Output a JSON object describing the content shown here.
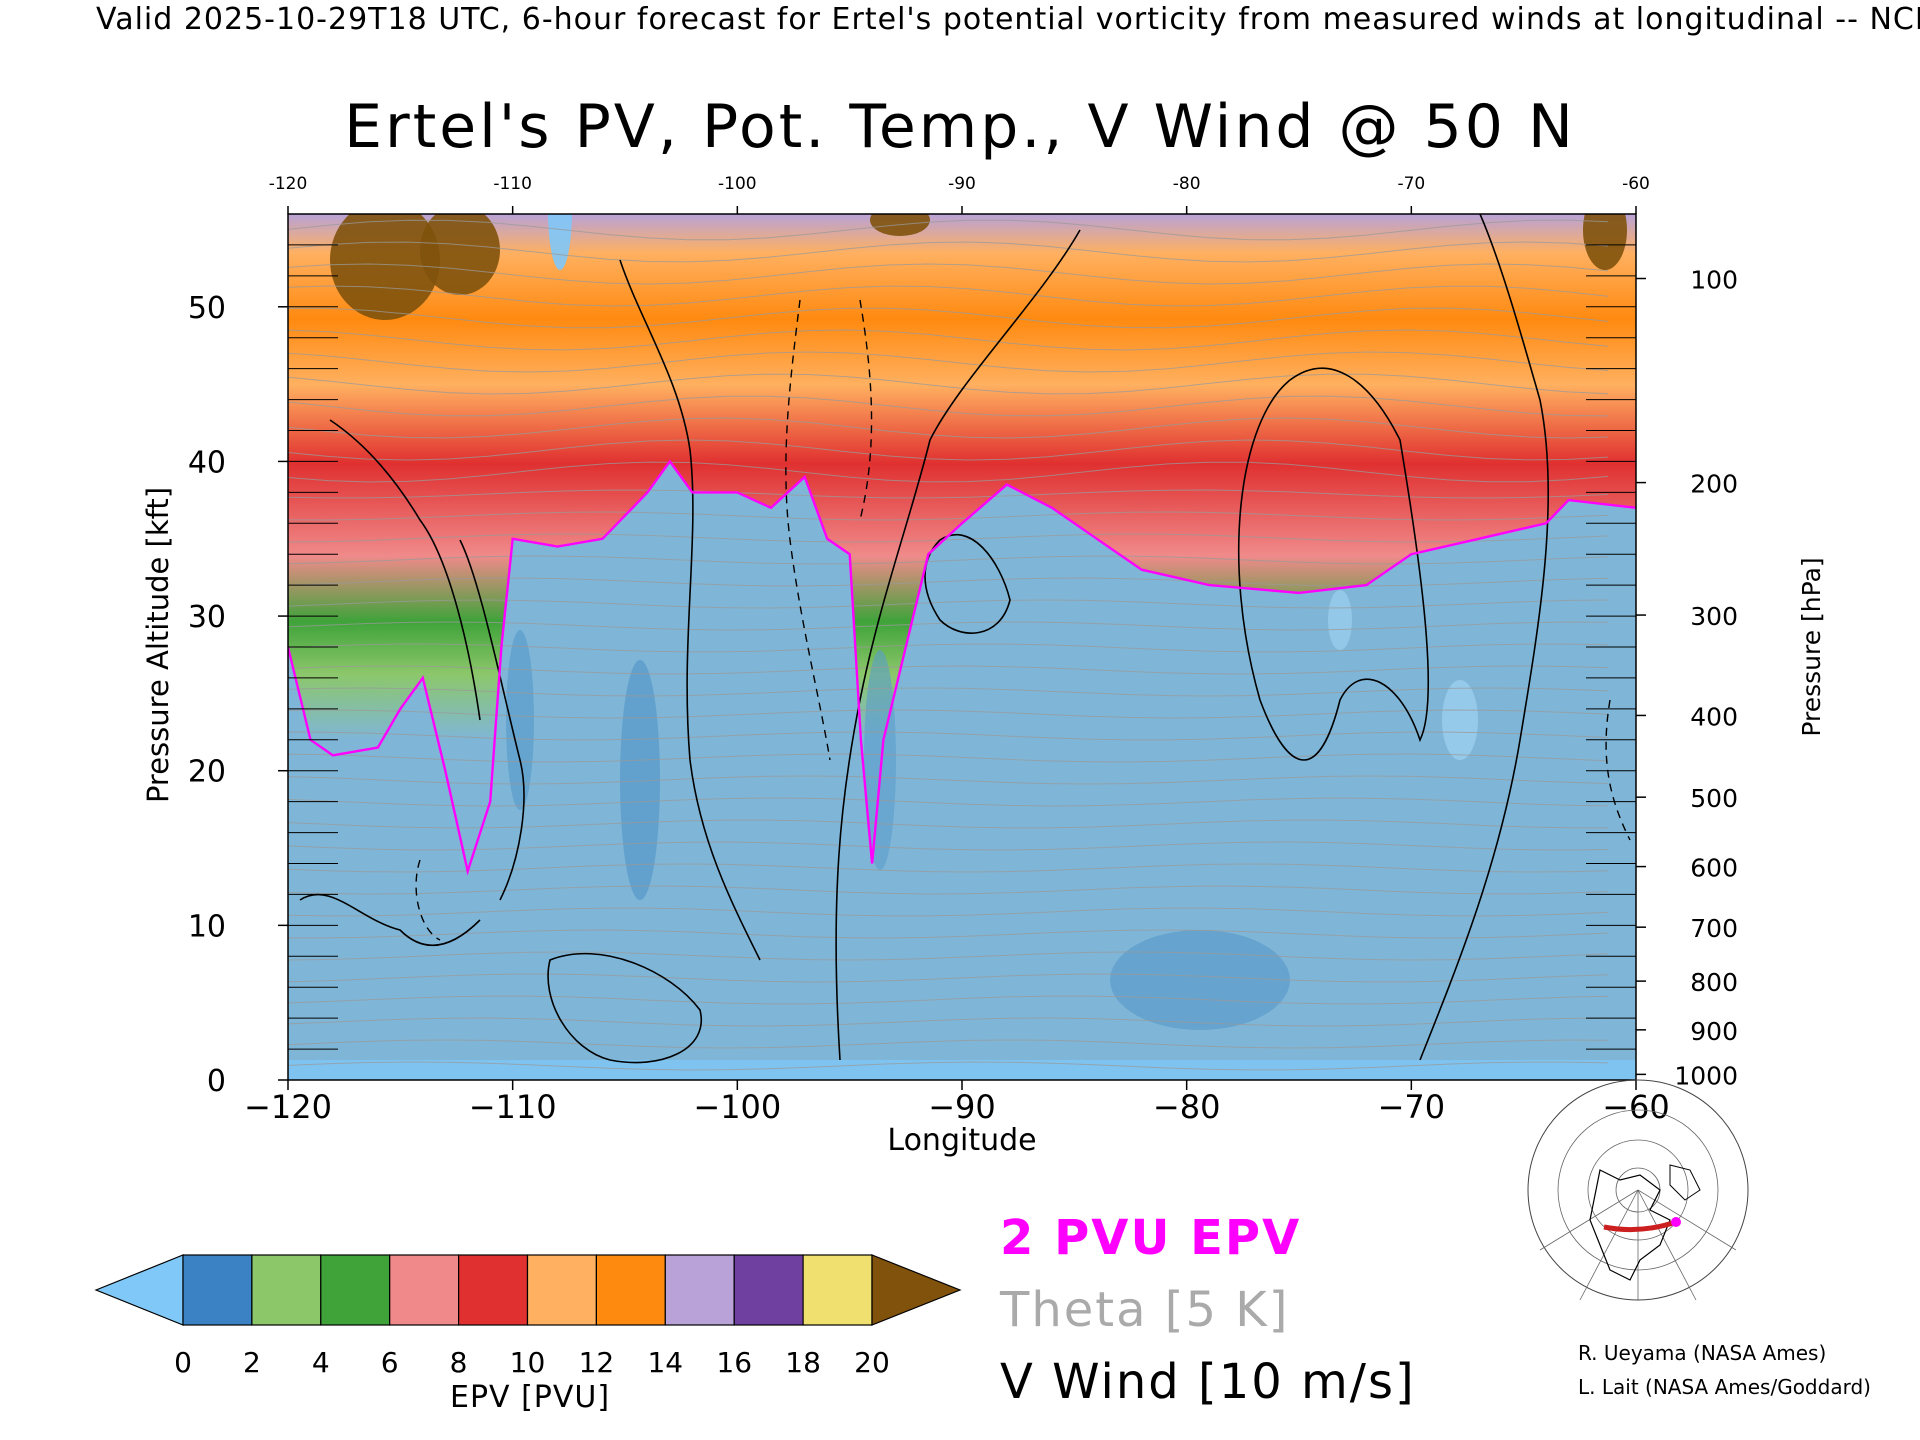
{
  "header": "Valid 2025-10-29T18 UTC, 6-hour forecast for Ertel's potential vorticity from measured winds at longitudinal -- NCE",
  "chart_data": {
    "type": "heatmap",
    "title": "Ertel's PV, Pot. Temp., V Wind @ 50 N",
    "xlabel": "Longitude",
    "ylabel": "Pressure Altitude [kft]",
    "y2label": "Pressure [hPa]",
    "xlim": [
      -120,
      -60
    ],
    "ylim": [
      0,
      56
    ],
    "x_ticks": [
      "−120",
      "−110",
      "−100",
      "−90",
      "−80",
      "−70",
      "−60"
    ],
    "top_x_ticks": [
      "-120",
      "-110",
      "-100",
      "-90",
      "-80",
      "-70",
      "-60"
    ],
    "y_ticks": [
      "0",
      "10",
      "20",
      "30",
      "40",
      "50"
    ],
    "pressure_ticks": [
      {
        "hpa": 100,
        "label": "100"
      },
      {
        "hpa": 200,
        "label": "200"
      },
      {
        "hpa": 300,
        "label": "300"
      },
      {
        "hpa": 400,
        "label": "400"
      },
      {
        "hpa": 500,
        "label": "500"
      },
      {
        "hpa": 600,
        "label": "600"
      },
      {
        "hpa": 700,
        "label": "700"
      },
      {
        "hpa": 800,
        "label": "800"
      },
      {
        "hpa": 900,
        "label": "900"
      },
      {
        "hpa": 1000,
        "label": "1000"
      }
    ],
    "tropopause_2pvu_kft": [
      {
        "lon": -120,
        "alt": 28
      },
      {
        "lon": -119,
        "alt": 22
      },
      {
        "lon": -118,
        "alt": 21
      },
      {
        "lon": -116,
        "alt": 21.5
      },
      {
        "lon": -115,
        "alt": 24
      },
      {
        "lon": -114,
        "alt": 26
      },
      {
        "lon": -113,
        "alt": 20
      },
      {
        "lon": -112,
        "alt": 13.5
      },
      {
        "lon": -111,
        "alt": 18
      },
      {
        "lon": -110.5,
        "alt": 28
      },
      {
        "lon": -110,
        "alt": 35
      },
      {
        "lon": -108,
        "alt": 34.5
      },
      {
        "lon": -106,
        "alt": 35
      },
      {
        "lon": -104,
        "alt": 38
      },
      {
        "lon": -103,
        "alt": 40
      },
      {
        "lon": -102,
        "alt": 38
      },
      {
        "lon": -100,
        "alt": 38
      },
      {
        "lon": -98.5,
        "alt": 37
      },
      {
        "lon": -97,
        "alt": 39
      },
      {
        "lon": -96,
        "alt": 35
      },
      {
        "lon": -95,
        "alt": 34
      },
      {
        "lon": -94.5,
        "alt": 22
      },
      {
        "lon": -94,
        "alt": 14
      },
      {
        "lon": -93.5,
        "alt": 22
      },
      {
        "lon": -92.5,
        "alt": 28
      },
      {
        "lon": -91.5,
        "alt": 34
      },
      {
        "lon": -90,
        "alt": 36
      },
      {
        "lon": -88,
        "alt": 38.5
      },
      {
        "lon": -86,
        "alt": 37
      },
      {
        "lon": -84,
        "alt": 35
      },
      {
        "lon": -82,
        "alt": 33
      },
      {
        "lon": -79,
        "alt": 32
      },
      {
        "lon": -75,
        "alt": 31.5
      },
      {
        "lon": -72,
        "alt": 32
      },
      {
        "lon": -70,
        "alt": 34
      },
      {
        "lon": -67,
        "alt": 35
      },
      {
        "lon": -64,
        "alt": 36
      },
      {
        "lon": -63,
        "alt": 37.5
      },
      {
        "lon": -60,
        "alt": 37
      }
    ],
    "colorbar": {
      "label": "EPV [PVU]",
      "ticks": [
        "0",
        "2",
        "4",
        "6",
        "8",
        "10",
        "12",
        "14",
        "16",
        "18",
        "20"
      ],
      "bins": [
        {
          "range": [
            0,
            2
          ],
          "color": "#3a82c4"
        },
        {
          "range": [
            2,
            4
          ],
          "color": "#8cc76a"
        },
        {
          "range": [
            4,
            6
          ],
          "color": "#3fa33a"
        },
        {
          "range": [
            6,
            8
          ],
          "color": "#f08a8a"
        },
        {
          "range": [
            8,
            10
          ],
          "color": "#e03030"
        },
        {
          "range": [
            10,
            12
          ],
          "color": "#ffb060"
        },
        {
          "range": [
            12,
            14
          ],
          "color": "#ff8a10"
        },
        {
          "range": [
            14,
            16
          ],
          "color": "#b8a2d8"
        },
        {
          "range": [
            16,
            18
          ],
          "color": "#7040a0"
        },
        {
          "range": [
            18,
            20
          ],
          "color": "#f0e070"
        }
      ],
      "under_color": "#80c8f8",
      "over_color": "#80520c"
    }
  },
  "legend": {
    "pvu": "2 PVU EPV",
    "theta": "Theta [5 K]",
    "vwind": "V Wind [10 m/s]",
    "pvu_color": "#ff00ff",
    "theta_color": "#aaaaaa",
    "vwind_color": "#000000"
  },
  "credits": [
    "R. Ueyama (NASA Ames)",
    "L. Lait (NASA Ames/Goddard)"
  ],
  "inset_map": {
    "icon": "polar-globe-map-icon",
    "track_color": "#cc2020",
    "marker_color": "#ff00ff"
  }
}
